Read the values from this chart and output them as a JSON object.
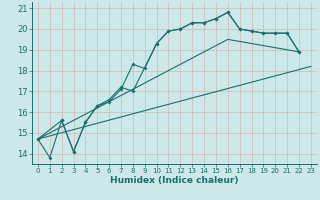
{
  "xlabel": "Humidex (Indice chaleur)",
  "bg_color": "#cce8e8",
  "grid_color": "#aacccc",
  "line_color": "#1a6e6e",
  "xlim": [
    -0.5,
    23.5
  ],
  "ylim": [
    13.5,
    21.3
  ],
  "yticks": [
    14,
    15,
    16,
    17,
    18,
    19,
    20,
    21
  ],
  "xticks": [
    0,
    1,
    2,
    3,
    4,
    5,
    6,
    7,
    8,
    9,
    10,
    11,
    12,
    13,
    14,
    15,
    16,
    17,
    18,
    19,
    20,
    21,
    22,
    23
  ],
  "line1_x": [
    0,
    1,
    2,
    3,
    4,
    5,
    6,
    7,
    8,
    9,
    10,
    11,
    12,
    13,
    14,
    15,
    16,
    17,
    18,
    19,
    20,
    21,
    22
  ],
  "line1_y": [
    14.7,
    13.8,
    15.6,
    14.1,
    15.5,
    16.3,
    16.5,
    17.1,
    18.3,
    18.1,
    19.3,
    19.9,
    20.0,
    20.3,
    20.3,
    20.5,
    20.8,
    20.0,
    19.9,
    19.8,
    19.8,
    19.8,
    18.9
  ],
  "line2_x": [
    0,
    2,
    3,
    4,
    5,
    6,
    7,
    8,
    10,
    11,
    12,
    13,
    14,
    15,
    16,
    17,
    18,
    19,
    20,
    21,
    22
  ],
  "line2_y": [
    14.7,
    15.6,
    14.1,
    15.5,
    16.3,
    16.6,
    17.2,
    17.0,
    19.3,
    19.9,
    20.0,
    20.3,
    20.3,
    20.5,
    20.8,
    20.0,
    19.9,
    19.8,
    19.8,
    19.8,
    18.9
  ],
  "line3_x": [
    0,
    23
  ],
  "line3_y": [
    14.7,
    18.2
  ],
  "line4_x": [
    0,
    16,
    22
  ],
  "line4_y": [
    14.7,
    19.5,
    18.9
  ]
}
